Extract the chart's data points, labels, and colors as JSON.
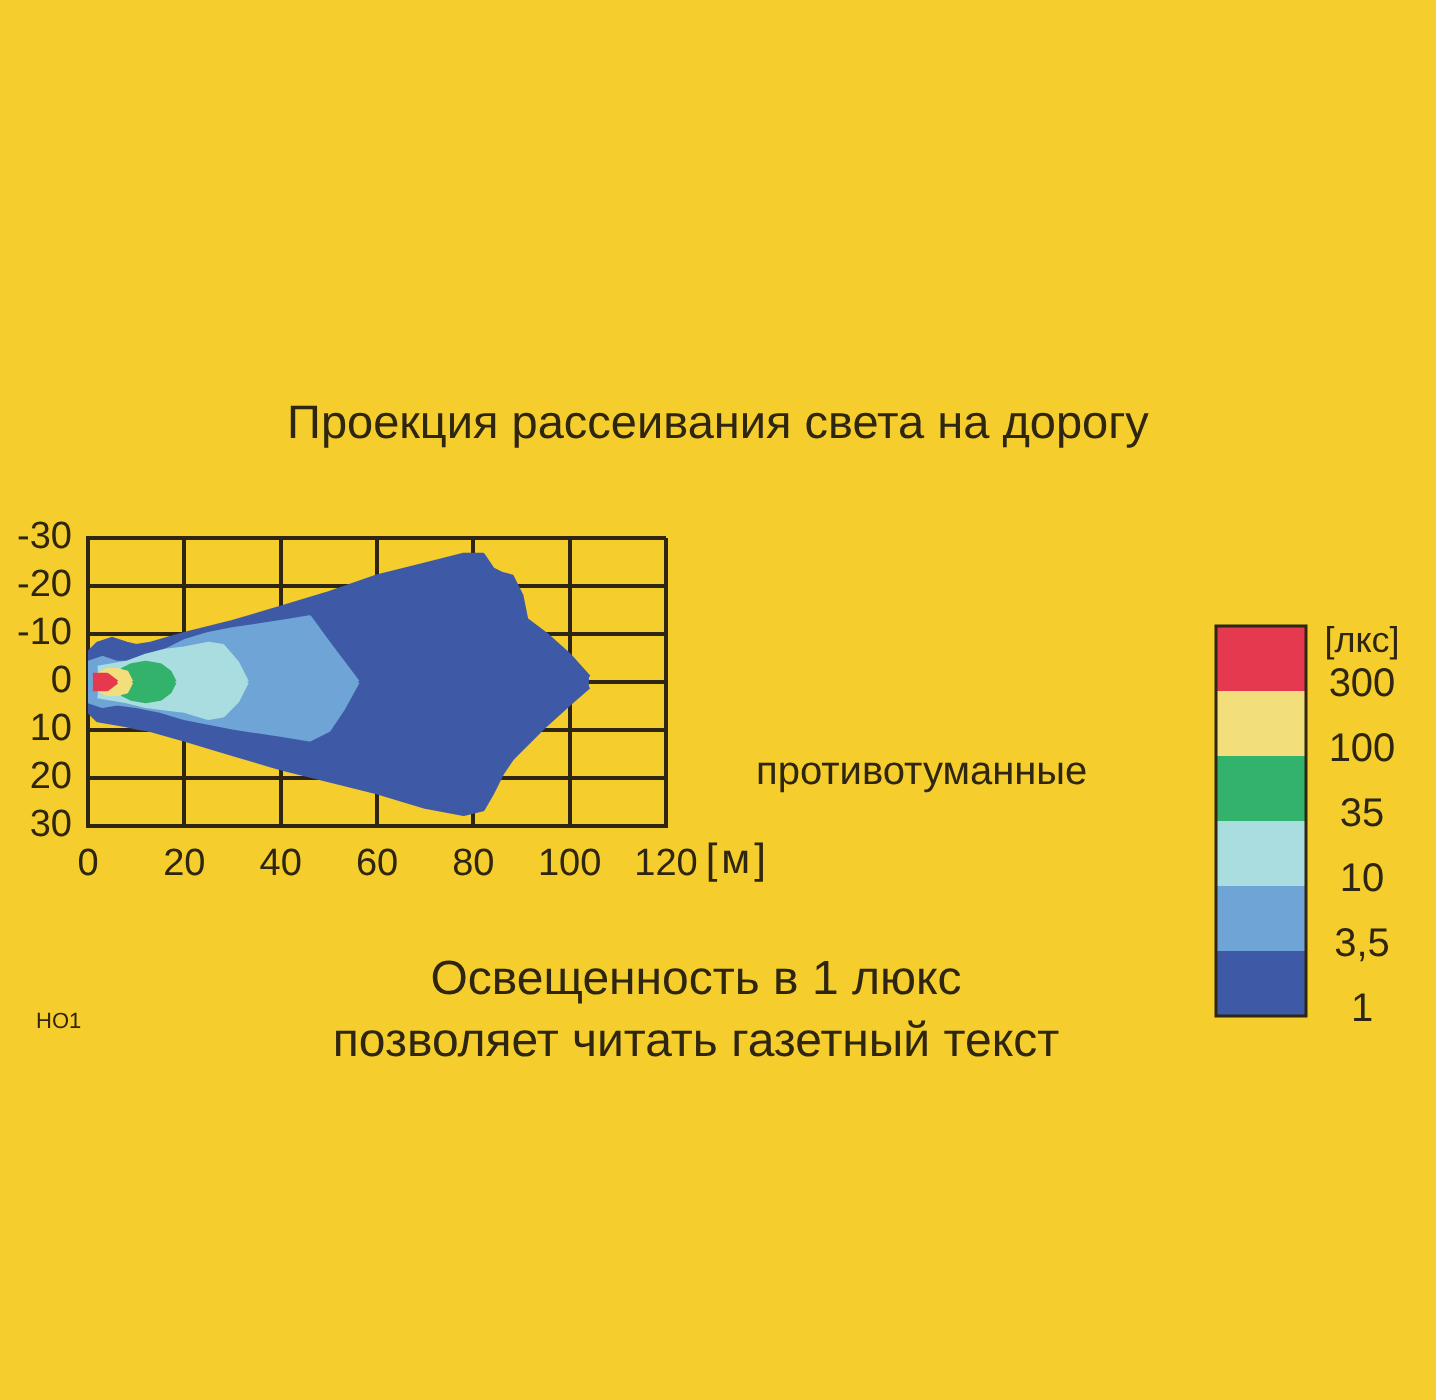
{
  "chart_data": {
    "type": "area",
    "title": "Проекция рассеивания света на дорогу",
    "xlabel": "[м]",
    "legend_title": "[лкс]",
    "legend": "right",
    "annotations": [
      "противотуманные",
      "Освещенность в 1 люкс позволяет читать газетный текст",
      "НО1"
    ],
    "xlim": [
      0,
      120
    ],
    "xticks": [
      0,
      20,
      40,
      60,
      80,
      100,
      120
    ],
    "ylim": [
      30,
      -30
    ],
    "yticks": [
      -30,
      -20,
      -10,
      0,
      10,
      20,
      30
    ],
    "grid": true,
    "series": [
      {
        "name": "1",
        "color": "#3e5aa6",
        "x": [
          0,
          2,
          5,
          8,
          10,
          13,
          20,
          30,
          40,
          50,
          60,
          70,
          78,
          82,
          84,
          86,
          88,
          90,
          91,
          95,
          100,
          104
        ],
        "values": [
          -6,
          -8,
          -9,
          -8,
          -7.5,
          -8,
          -10,
          -12.5,
          -15.5,
          -18.5,
          -22,
          -24.5,
          -26.5,
          -26.5,
          -23.5,
          -22.5,
          -22,
          -18,
          -13,
          -10,
          -5.5,
          -1
        ]
      },
      {
        "color": "#3e5aa6",
        "x": [
          0,
          2,
          5,
          8,
          10,
          13,
          20,
          30,
          40,
          50,
          60,
          70,
          78,
          82,
          84,
          86,
          88,
          90,
          91,
          95,
          100,
          104
        ],
        "values": [
          6,
          8,
          8.5,
          9,
          9.5,
          10,
          12,
          15,
          18,
          20.5,
          23,
          26,
          27.5,
          26.5,
          23,
          19,
          16,
          14,
          13,
          9,
          4.5,
          1
        ]
      },
      {
        "name": "3,5",
        "color": "#6ea5d6",
        "x": [
          0,
          3,
          6,
          10,
          15,
          20,
          25,
          30,
          40,
          46,
          50,
          53,
          56
        ],
        "values": [
          -4,
          -5,
          -4,
          -4,
          -6,
          -8.5,
          -10,
          -11,
          -12.5,
          -13.5,
          -8,
          -4,
          0
        ]
      },
      {
        "color": "#6ea5d6",
        "x": [
          0,
          3,
          6,
          10,
          15,
          20,
          25,
          30,
          40,
          46,
          50,
          53,
          56
        ],
        "values": [
          4,
          5,
          4.5,
          5,
          6,
          7.5,
          8.5,
          9.5,
          11,
          12,
          10,
          5.5,
          0
        ]
      },
      {
        "name": "10",
        "color": "#a9dde0",
        "x": [
          2,
          5,
          8,
          12,
          16,
          20,
          25,
          28,
          31,
          33
        ],
        "values": [
          -3,
          -3.5,
          -4,
          -5.5,
          -6.5,
          -7,
          -8,
          -7.5,
          -4,
          0
        ]
      },
      {
        "color": "#a9dde0",
        "x": [
          2,
          5,
          8,
          12,
          16,
          20,
          25,
          28,
          31,
          33
        ],
        "values": [
          3,
          3.5,
          4,
          5,
          5.5,
          6,
          7.5,
          7,
          4,
          0
        ]
      },
      {
        "name": "35",
        "color": "#33b26b",
        "x": [
          7,
          9,
          12,
          15,
          17,
          18
        ],
        "values": [
          -2.5,
          -3.5,
          -4,
          -3.5,
          -2,
          0
        ]
      },
      {
        "color": "#33b26b",
        "x": [
          7,
          9,
          12,
          15,
          17,
          18
        ],
        "values": [
          2.5,
          3.5,
          4,
          3.5,
          2,
          0
        ]
      },
      {
        "name": "100",
        "color": "#f3de7c",
        "x": [
          2,
          4,
          6,
          8,
          9
        ],
        "values": [
          -1.5,
          -2.5,
          -2.5,
          -2,
          0
        ]
      },
      {
        "color": "#f3de7c",
        "x": [
          2,
          4,
          6,
          8,
          9
        ],
        "values": [
          1.5,
          2.5,
          2.5,
          2,
          0
        ]
      },
      {
        "name": "300",
        "color": "#e5394f",
        "x": [
          1,
          4,
          6
        ],
        "values": [
          -1.5,
          -1.5,
          0
        ]
      },
      {
        "color": "#e5394f",
        "x": [
          1,
          4,
          6
        ],
        "values": [
          1.5,
          1.5,
          0
        ]
      }
    ]
  }
}
